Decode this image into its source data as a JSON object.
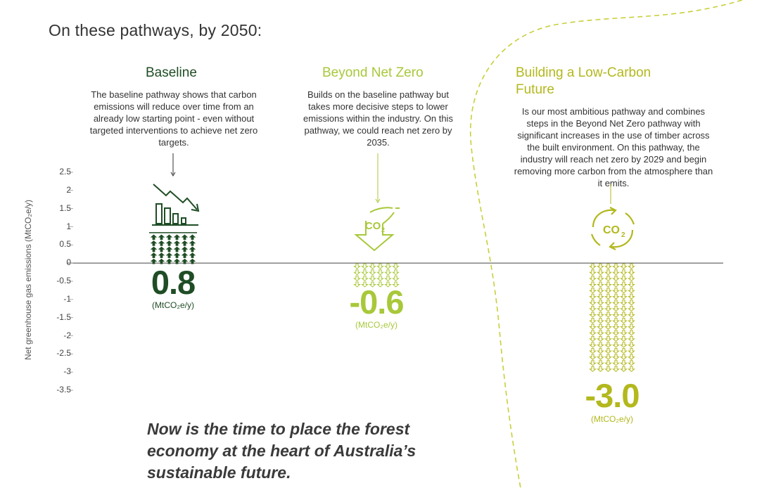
{
  "heading": "On these pathways, by 2050:",
  "colors": {
    "baseline": "#1f4d25",
    "beyond": "#a8c83a",
    "building": "#b3b81d",
    "text": "#333333",
    "axis": "#444444"
  },
  "pathways": [
    {
      "title": "Baseline",
      "description": "The baseline pathway shows that carbon emissions will reduce over time from an already low starting point - even without targeted interventions to achieve net zero targets.",
      "value_label": "0.8",
      "unit": "(MtCO₂e/y)",
      "icon": "declining-bar-chart-icon"
    },
    {
      "title": "Beyond Net Zero",
      "description": "Builds on the baseline pathway but takes more decisive steps to lower emissions within the industry. On this pathway, we could reach net zero by 2035.",
      "value_label": "-0.6",
      "unit": "(MtCO₂e/y)",
      "icon": "co2-down-arrow-icon"
    },
    {
      "title": "Building a Low-Carbon Future",
      "description": "Is our most ambitious pathway and combines steps in the Beyond Net Zero pathway with significant increases in the use of timber across the built environment. On this pathway, the industry will reach net zero by 2029 and begin removing more carbon from the atmosphere than it emits.",
      "value_label": "-3.0",
      "unit": "(MtCO₂e/y)",
      "icon": "co2-cycle-icon"
    }
  ],
  "tagline": "Now is the time to place the forest economy at the heart of Australia’s sustainable future.",
  "chart_data": {
    "type": "bar",
    "categories": [
      "Baseline",
      "Beyond Net Zero",
      "Building a Low-Carbon Future"
    ],
    "values": [
      0.8,
      -0.6,
      -3.0
    ],
    "ylabel": "Net greenhouse gas emissions (MtCO₂e/y)",
    "ylim": [
      -3.5,
      2.5
    ],
    "yticks": [
      "2.5",
      "2",
      "1.5",
      "1",
      "0.5",
      "0",
      "-0.5",
      "-1",
      "-1.5",
      "-2",
      "-2.5",
      "-3",
      "-3.5"
    ],
    "grid": false,
    "mark_style": "stacked arrow glyphs"
  }
}
